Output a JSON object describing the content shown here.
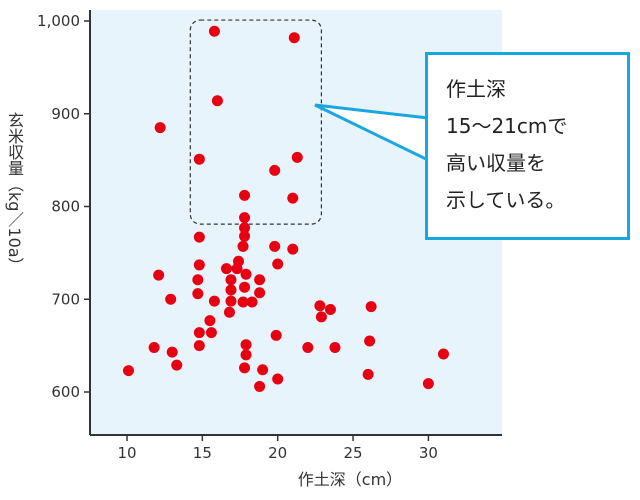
{
  "chart_data": {
    "type": "scatter",
    "xlabel": "作土深（cm）",
    "ylabel": "玄米収量（kg／10a）",
    "xlim": [
      7.5,
      35
    ],
    "ylim": [
      550,
      1010
    ],
    "xticks": [
      10,
      15,
      20,
      25,
      30
    ],
    "yticks": [
      600,
      700,
      800,
      900,
      1000
    ],
    "ytick_labels": [
      "600",
      "700",
      "800",
      "900",
      "1,000"
    ],
    "grid": false,
    "point_color": "#e60012",
    "background_color": "#e8f4fc",
    "points": [
      [
        15.8,
        989
      ],
      [
        21.1,
        982
      ],
      [
        16.0,
        914
      ],
      [
        12.2,
        885
      ],
      [
        14.8,
        851
      ],
      [
        21.3,
        853
      ],
      [
        19.8,
        839
      ],
      [
        17.8,
        812
      ],
      [
        21.0,
        809
      ],
      [
        17.8,
        788
      ],
      [
        17.8,
        777
      ],
      [
        17.8,
        768
      ],
      [
        14.8,
        767
      ],
      [
        17.7,
        757
      ],
      [
        19.8,
        757
      ],
      [
        21.0,
        754
      ],
      [
        17.4,
        741
      ],
      [
        20.0,
        738
      ],
      [
        14.8,
        737
      ],
      [
        16.6,
        733
      ],
      [
        17.3,
        733
      ],
      [
        12.1,
        726
      ],
      [
        17.9,
        727
      ],
      [
        14.7,
        721
      ],
      [
        16.9,
        721
      ],
      [
        18.8,
        721
      ],
      [
        16.9,
        710
      ],
      [
        17.8,
        713
      ],
      [
        14.7,
        706
      ],
      [
        18.8,
        707
      ],
      [
        12.9,
        700
      ],
      [
        15.8,
        698
      ],
      [
        16.9,
        698
      ],
      [
        17.7,
        697
      ],
      [
        18.3,
        697
      ],
      [
        16.8,
        686
      ],
      [
        22.8,
        693
      ],
      [
        23.5,
        689
      ],
      [
        26.2,
        692
      ],
      [
        22.9,
        681
      ],
      [
        15.5,
        677
      ],
      [
        14.8,
        664
      ],
      [
        15.6,
        664
      ],
      [
        19.9,
        661
      ],
      [
        17.9,
        651
      ],
      [
        26.1,
        655
      ],
      [
        11.8,
        648
      ],
      [
        14.8,
        650
      ],
      [
        22.0,
        648
      ],
      [
        23.8,
        648
      ],
      [
        13.0,
        643
      ],
      [
        17.9,
        640
      ],
      [
        31.0,
        641
      ],
      [
        13.3,
        629
      ],
      [
        17.8,
        626
      ],
      [
        10.1,
        623
      ],
      [
        19.0,
        624
      ],
      [
        26.0,
        619
      ],
      [
        20.0,
        614
      ],
      [
        18.8,
        606
      ],
      [
        30.0,
        609
      ]
    ],
    "highlight_region": {
      "x": [
        14.2,
        22.9
      ],
      "y": [
        781,
        1001
      ]
    },
    "annotation": "作土深\n15〜21cmで\n高い収量を\n示している。",
    "annotation_color": "#1aa6e0"
  }
}
